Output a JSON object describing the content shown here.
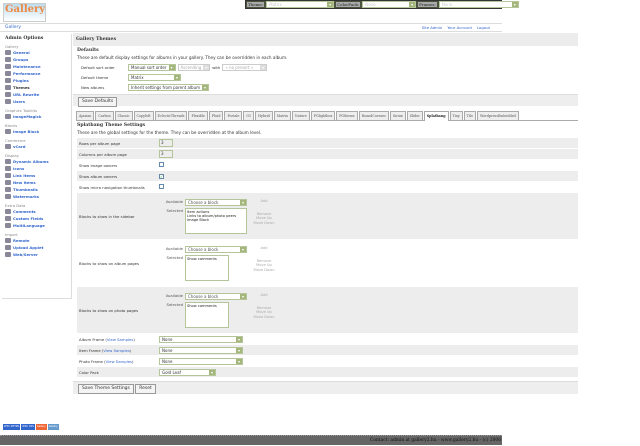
{
  "topbar": {
    "theme_label": "Theme:",
    "theme_value": "Matrix",
    "colorpack_label": "ColorPack:",
    "colorpack_value": "None",
    "frames_label": "Frames:",
    "frames_value": "None"
  },
  "logo": {
    "text": "Gallery"
  },
  "breadcrumb": "Gallery",
  "toplinks": [
    "Site Admin",
    "Your Account",
    "Logout"
  ],
  "sidebar": {
    "title": "Admin Options",
    "groups": [
      {
        "label": "Gallery",
        "items": [
          "General",
          "Groups",
          "Maintenance",
          "Performance",
          "Plugins",
          "Themes",
          "URL Rewrite",
          "Users"
        ]
      },
      {
        "label": "Graphics Toolkits",
        "items": [
          "ImageMagick"
        ]
      },
      {
        "label": "Blocks",
        "items": [
          "Image Block"
        ]
      },
      {
        "label": "Commerce",
        "items": [
          "vCard"
        ]
      },
      {
        "label": "Display",
        "items": [
          "Dynamic Albums",
          "Icons",
          "Link Items",
          "New Items",
          "Thumbnails",
          "Watermarks"
        ]
      },
      {
        "label": "Extra Data",
        "items": [
          "Comments",
          "Custom Fields",
          "MultiLanguage"
        ]
      },
      {
        "label": "Import",
        "items": [
          "Remote",
          "Upload Applet",
          "Web/Server"
        ]
      }
    ],
    "current": "Themes"
  },
  "main": {
    "title": "Gallery Themes",
    "defaults": {
      "heading": "Defaults",
      "desc": "These are default display settings for albums in your gallery. They can be overridden in each album.",
      "sort_label": "Default sort order",
      "sort_value": "Manual sort order",
      "direction_value": "Ascending",
      "with_label": "with",
      "presort_value": "« no presort »",
      "theme_label": "Default theme",
      "theme_value": "Matrix",
      "new_label": "New albums",
      "new_value": "Inherit settings from parent album",
      "save": "Save Defaults"
    },
    "tabs": [
      "Ajaxian",
      "Carbon",
      "Classic",
      "Copyleft",
      "EclecticThreads",
      "Flexible",
      "Fluid",
      "Fortale",
      "G1",
      "Hybrid",
      "Matrix",
      "Nature",
      "PGlightbox",
      "PGtheme",
      "RoundCorners",
      "Siriux",
      "Slider",
      "Splatbang",
      "Tiny",
      "Tile",
      "WordpressEmbedded"
    ],
    "active_tab": "Splatbang",
    "settings": {
      "heading": "Splatbang Theme Settings",
      "desc": "These are the global settings for the theme. They can be overridden at the album level.",
      "rows_label": "Rows per album page",
      "rows_value": "3",
      "cols_label": "Columns per album page",
      "cols_value": "3",
      "image_owners_label": "Show image owners",
      "image_owners": false,
      "album_owners_label": "Show album owners",
      "album_owners": true,
      "micro_label": "Show micro navigation thumbnails",
      "micro": false,
      "available_label": "Available",
      "selected_label": "Selected",
      "choose": "Choose a block",
      "add": "Add",
      "remove": "Remove",
      "move_up": "Move Up",
      "move_down": "Move Down",
      "sidebar_blocks_label": "Blocks to show in the sidebar",
      "sidebar_blocks": [
        "Item actions",
        "Links to album/photo peers",
        "Image Block"
      ],
      "album_blocks_label": "Blocks to show on album pages",
      "album_blocks": [
        "Show comments"
      ],
      "photo_blocks_label": "Blocks to show on photo pages",
      "photo_blocks": [
        "Show comments"
      ],
      "album_frame_label": "Album Frame",
      "item_frame_label": "Item Frame",
      "photo_frame_label": "Photo Frame",
      "view_samples": "View Samples",
      "album_frame": "None",
      "item_frame": "None",
      "photo_frame": "None",
      "colorpack_label": "Color Pack",
      "colorpack": "Gold Leaf",
      "save": "Save Theme Settings",
      "reset": "Reset"
    }
  },
  "badges": [
    "W3C XHTML",
    "W3C CSS",
    "Gallery",
    "Gallery"
  ],
  "footer": "Contact: admin at gallery2.hu - www.gallery2.hu - (c) 2006"
}
